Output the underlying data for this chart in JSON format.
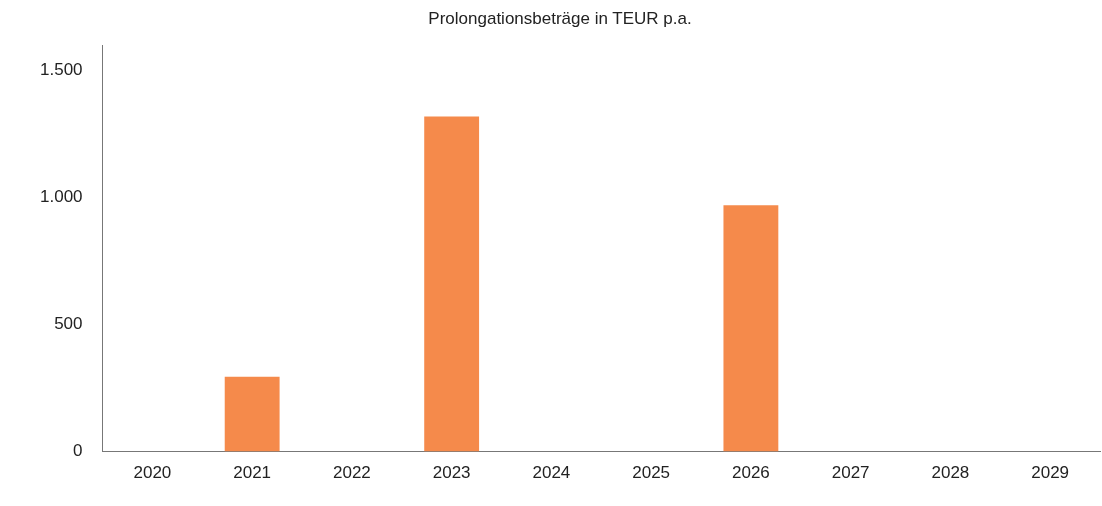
{
  "chart_data": {
    "type": "bar",
    "title": "Prolongationsbeträge in TEUR p.a.",
    "categories": [
      "2020",
      "2021",
      "2022",
      "2023",
      "2024",
      "2025",
      "2026",
      "2027",
      "2028",
      "2029"
    ],
    "values": [
      0,
      295,
      0,
      1320,
      0,
      0,
      970,
      0,
      0,
      0
    ],
    "color": "#f58a4b",
    "ylim": [
      0,
      1600
    ],
    "yticks": [
      0,
      500,
      {
        "value": 1000,
        "label": "1.000"
      },
      {
        "value": 1500,
        "label": "1.500"
      }
    ],
    "grid": false,
    "legend": false
  }
}
